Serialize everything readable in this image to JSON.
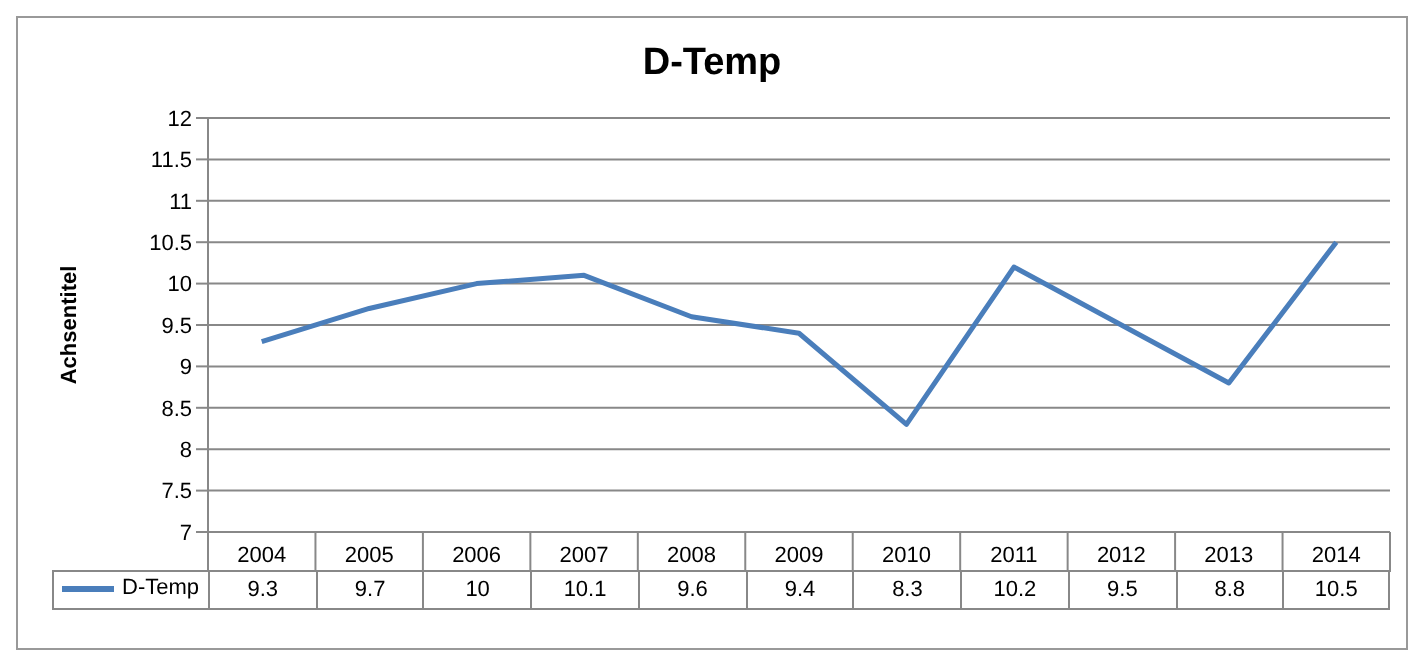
{
  "chart_data": {
    "type": "line",
    "title": "D-Temp",
    "ylabel": "Achsentitel",
    "categories": [
      "2004",
      "2005",
      "2006",
      "2007",
      "2008",
      "2009",
      "2010",
      "2011",
      "2012",
      "2013",
      "2014"
    ],
    "series": [
      {
        "name": "D-Temp",
        "color": "#4a7ebb",
        "values": [
          9.3,
          9.7,
          10,
          10.1,
          9.6,
          9.4,
          8.3,
          10.2,
          9.5,
          8.8,
          10.5
        ]
      }
    ],
    "ylim": [
      7,
      12
    ],
    "yticks": [
      7,
      7.5,
      8,
      8.5,
      9,
      9.5,
      10,
      10.5,
      11,
      11.5,
      12
    ],
    "grid": "y",
    "legend": "bottom",
    "data_labels": true,
    "marker": "none",
    "line_style": "solid"
  }
}
